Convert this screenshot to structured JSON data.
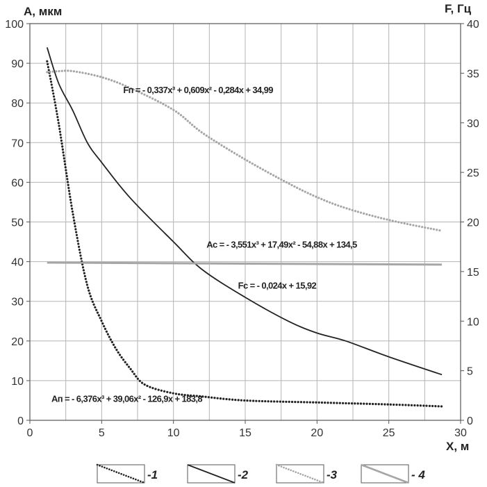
{
  "chart_data": {
    "type": "line",
    "y_left_label": "A, мкм",
    "y_right_label": "F, Гц",
    "x_label": "X, м",
    "x_range": [
      0,
      30
    ],
    "y_left_range": [
      0,
      100
    ],
    "y_right_range": [
      0,
      40
    ],
    "x_ticks": [
      "0",
      "5",
      "10",
      "15",
      "20",
      "25",
      "30"
    ],
    "y_left_ticks": [
      "0",
      "10",
      "20",
      "30",
      "40",
      "50",
      "60",
      "70",
      "80",
      "90",
      "100"
    ],
    "y_right_ticks": [
      "0",
      "5",
      "10",
      "15",
      "20",
      "25",
      "30",
      "35",
      "40"
    ],
    "grid": true,
    "series": [
      {
        "name": "1",
        "axis": "left",
        "style": "dotted",
        "color": "#222222",
        "x": [
          1.2,
          2,
          3,
          4,
          5,
          6,
          7,
          8,
          10,
          12,
          15,
          20,
          25,
          28.7
        ],
        "y": [
          90.5,
          75,
          52,
          34,
          25,
          18,
          13,
          9,
          6.8,
          6,
          5,
          4.5,
          4,
          3.5
        ]
      },
      {
        "name": "2",
        "axis": "left",
        "style": "solid",
        "color": "#222222",
        "x": [
          1.2,
          2,
          3,
          4,
          5,
          7,
          10,
          12,
          15,
          18,
          20,
          22,
          25,
          28.7
        ],
        "y": [
          94,
          85,
          78,
          70,
          65,
          56,
          45,
          38,
          31,
          25,
          22,
          20,
          16,
          11.5
        ]
      },
      {
        "name": "3",
        "axis": "right",
        "style": "dotted",
        "color": "#a6a6a6",
        "x": [
          1.2,
          2,
          3,
          5,
          7,
          10,
          12,
          15,
          18,
          20,
          22,
          25,
          28.7
        ],
        "y": [
          35.1,
          35.2,
          35.2,
          34.6,
          33.5,
          31.3,
          29.0,
          26.3,
          23.9,
          22.5,
          21.4,
          20.2,
          19.1
        ]
      },
      {
        "name": "4",
        "axis": "right",
        "style": "solid",
        "color": "#a6a6a6",
        "x": [
          1.2,
          28.7
        ],
        "y": [
          15.9,
          15.7
        ]
      }
    ],
    "annotations": [
      {
        "text": "Fп = - 0,337x³ + 0,609x² - 0,284x + 34,99",
        "x": 6.5,
        "y_left": 82.5
      },
      {
        "text": "Ac = - 3,551x³ + 17,49x² - 54,88x + 134,5",
        "x": 12.3,
        "y_left": 43.5
      },
      {
        "text": "Fc = - 0,024x + 15,92",
        "x": 14.5,
        "y_left": 33.2
      },
      {
        "text": "Aп = - 6,376x³ + 39,06x² - 126,9x + 183,8",
        "x": 1.5,
        "y_left": 4.6
      }
    ],
    "legend": {
      "placement": "bottom",
      "items": [
        {
          "label": "-1",
          "style": "dotted",
          "color": "#222222"
        },
        {
          "label": "-2",
          "style": "solid",
          "color": "#222222"
        },
        {
          "label": "-3",
          "style": "dotted",
          "color": "#a6a6a6"
        },
        {
          "label": "- 4",
          "style": "solid",
          "color": "#a6a6a6"
        }
      ]
    }
  }
}
